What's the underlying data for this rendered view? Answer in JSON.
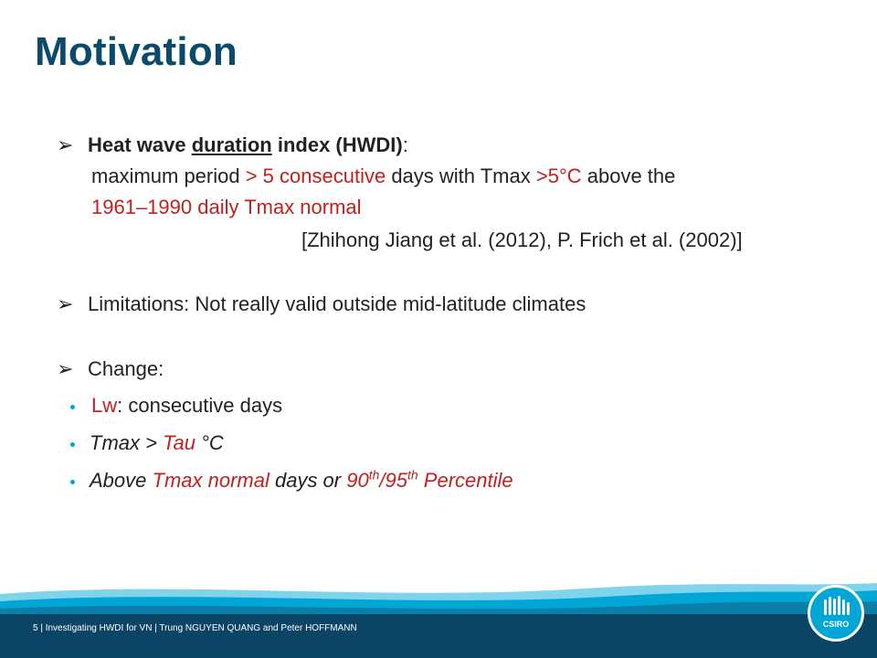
{
  "title": "Motivation",
  "hwdi": {
    "heading_prefix": "Heat wave ",
    "heading_underlined": "duration",
    "heading_suffix": " index (HWDI)",
    "heading_colon": ":",
    "line1_a": "maximum period ",
    "line1_b": "> 5 consecutive",
    "line1_c": " days with Tmax ",
    "line1_d": ">5°C",
    "line1_e": " above the",
    "line2": "1961–1990 daily Tmax normal",
    "citation": "[Zhihong Jiang et al. (2012), P. Frich et al. (2002)]"
  },
  "limitations": "Limitations: Not really valid outside mid-latitude climates",
  "change": {
    "heading": "Change:",
    "item1_a": "Lw",
    "item1_b": ": consecutive days",
    "item2_a": "Tmax > ",
    "item2_b": "Tau",
    "item2_c": " °C",
    "item3_a": "Above  ",
    "item3_b": "Tmax normal",
    "item3_c": " days or ",
    "item3_d": "90",
    "item3_sup1": "th",
    "item3_e": "/95",
    "item3_sup2": "th",
    "item3_f": " Percentile"
  },
  "footer": {
    "text": "5  |  Investigating HWDI for VN  |  Trung NGUYEN QUANG and Peter HOFFMANN",
    "logo_text": "CSIRO"
  },
  "colors": {
    "title": "#0a4a6b",
    "accent_red": "#c0211f",
    "footer_bg": "#0b4465",
    "wave": "#00a6d6"
  }
}
